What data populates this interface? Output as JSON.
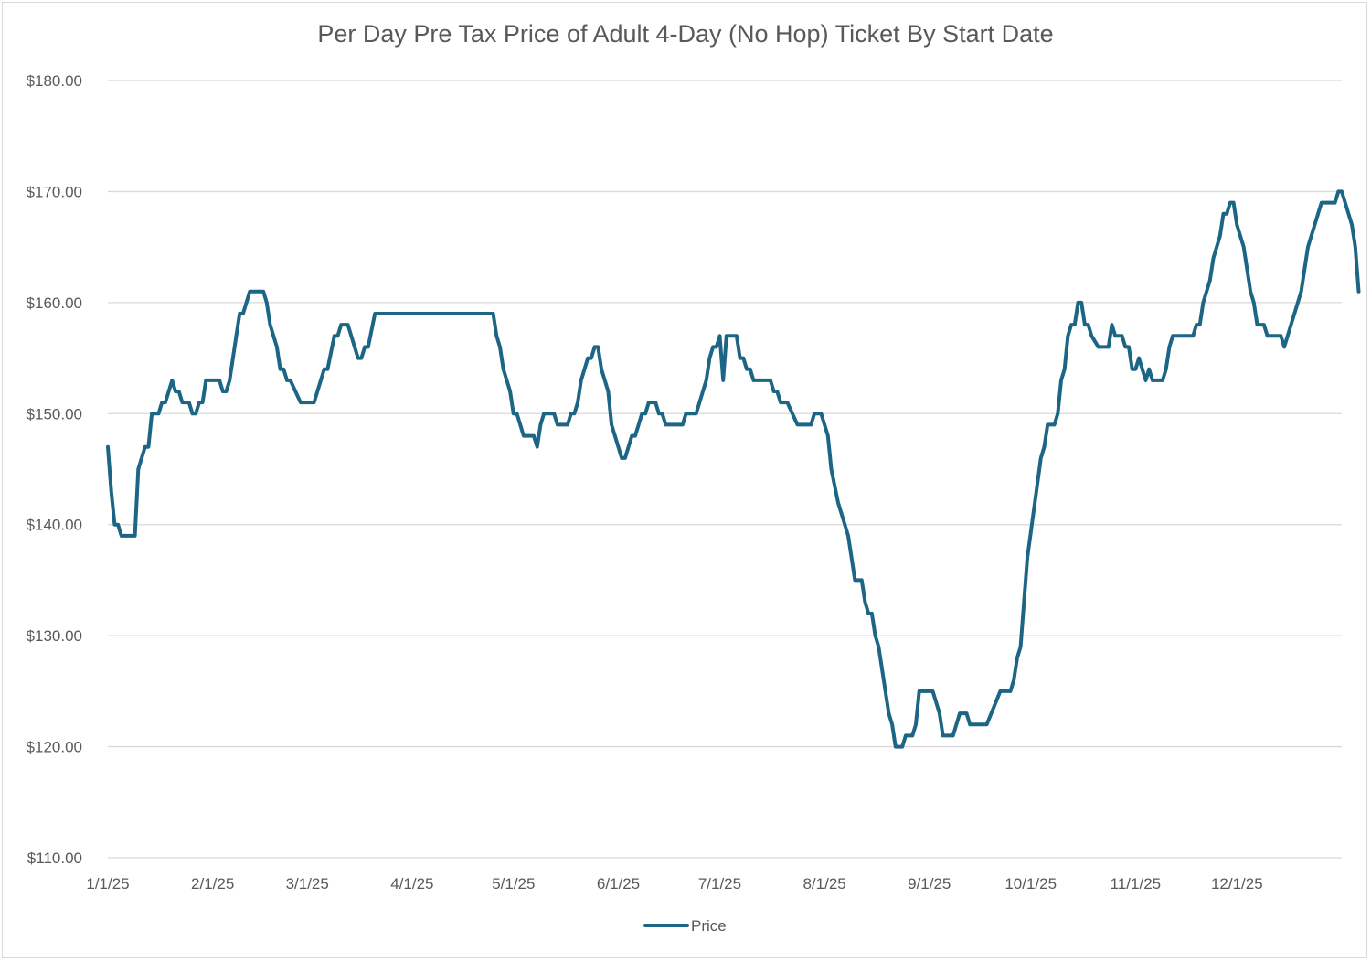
{
  "chart_data": {
    "type": "line",
    "title": "Per Day Pre Tax Price of Adult 4-Day (No Hop) Ticket By Start Date",
    "xlabel": "",
    "ylabel": "",
    "ylim": [
      110,
      180
    ],
    "xlim": [
      "1/1/25",
      "12/31/25"
    ],
    "y_ticks": [
      "$110.00",
      "$120.00",
      "$130.00",
      "$140.00",
      "$150.00",
      "$160.00",
      "$170.00",
      "$180.00"
    ],
    "x_ticks": [
      "1/1/25",
      "2/1/25",
      "3/1/25",
      "4/1/25",
      "5/1/25",
      "6/1/25",
      "7/1/25",
      "8/1/25",
      "9/1/25",
      "10/1/25",
      "11/1/25",
      "12/1/25"
    ],
    "grid": true,
    "legend": "bottom",
    "colors": {
      "line": "#1d6585",
      "grid": "#d9d9d9",
      "text": "#595959"
    },
    "series": [
      {
        "name": "Price",
        "points": [
          [
            "1/1/25",
            147
          ],
          [
            "1/2/25",
            143
          ],
          [
            "1/3/25",
            140
          ],
          [
            "1/4/25",
            140
          ],
          [
            "1/5/25",
            139
          ],
          [
            "1/9/25",
            139
          ],
          [
            "1/10/25",
            145
          ],
          [
            "1/12/25",
            147
          ],
          [
            "1/13/25",
            147
          ],
          [
            "1/14/25",
            150
          ],
          [
            "1/16/25",
            150
          ],
          [
            "1/17/25",
            151
          ],
          [
            "1/18/25",
            151
          ],
          [
            "1/20/25",
            153
          ],
          [
            "1/21/25",
            152
          ],
          [
            "1/22/25",
            152
          ],
          [
            "1/23/25",
            151
          ],
          [
            "1/25/25",
            151
          ],
          [
            "1/26/25",
            150
          ],
          [
            "1/27/25",
            150
          ],
          [
            "1/28/25",
            151
          ],
          [
            "1/29/25",
            151
          ],
          [
            "1/30/25",
            153
          ],
          [
            "2/3/25",
            153
          ],
          [
            "2/4/25",
            152
          ],
          [
            "2/5/25",
            152
          ],
          [
            "2/6/25",
            153
          ],
          [
            "2/8/25",
            157
          ],
          [
            "2/9/25",
            159
          ],
          [
            "2/10/25",
            159
          ],
          [
            "2/12/25",
            161
          ],
          [
            "2/16/25",
            161
          ],
          [
            "2/17/25",
            160
          ],
          [
            "2/18/25",
            158
          ],
          [
            "2/20/25",
            156
          ],
          [
            "2/21/25",
            154
          ],
          [
            "2/22/25",
            154
          ],
          [
            "2/23/25",
            153
          ],
          [
            "2/24/25",
            153
          ],
          [
            "2/27/25",
            151
          ],
          [
            "3/3/25",
            151
          ],
          [
            "3/6/25",
            154
          ],
          [
            "3/7/25",
            154
          ],
          [
            "3/9/25",
            157
          ],
          [
            "3/10/25",
            157
          ],
          [
            "3/11/25",
            158
          ],
          [
            "3/13/25",
            158
          ],
          [
            "3/16/25",
            155
          ],
          [
            "3/17/25",
            155
          ],
          [
            "3/18/25",
            156
          ],
          [
            "3/19/25",
            156
          ],
          [
            "3/21/25",
            159
          ],
          [
            "4/25/25",
            159
          ],
          [
            "4/26/25",
            157
          ],
          [
            "4/27/25",
            156
          ],
          [
            "4/28/25",
            154
          ],
          [
            "4/30/25",
            152
          ],
          [
            "5/1/25",
            150
          ],
          [
            "5/2/25",
            150
          ],
          [
            "5/4/25",
            148
          ],
          [
            "5/7/25",
            148
          ],
          [
            "5/8/25",
            147
          ],
          [
            "5/9/25",
            149
          ],
          [
            "5/10/25",
            150
          ],
          [
            "5/13/25",
            150
          ],
          [
            "5/14/25",
            149
          ],
          [
            "5/17/25",
            149
          ],
          [
            "5/18/25",
            150
          ],
          [
            "5/19/25",
            150
          ],
          [
            "5/20/25",
            151
          ],
          [
            "5/21/25",
            153
          ],
          [
            "5/23/25",
            155
          ],
          [
            "5/24/25",
            155
          ],
          [
            "5/25/25",
            156
          ],
          [
            "5/26/25",
            156
          ],
          [
            "5/27/25",
            154
          ],
          [
            "5/29/25",
            152
          ],
          [
            "5/30/25",
            149
          ],
          [
            "6/2/25",
            146
          ],
          [
            "6/3/25",
            146
          ],
          [
            "6/5/25",
            148
          ],
          [
            "6/6/25",
            148
          ],
          [
            "6/8/25",
            150
          ],
          [
            "6/9/25",
            150
          ],
          [
            "6/10/25",
            151
          ],
          [
            "6/12/25",
            151
          ],
          [
            "6/13/25",
            150
          ],
          [
            "6/14/25",
            150
          ],
          [
            "6/15/25",
            149
          ],
          [
            "6/20/25",
            149
          ],
          [
            "6/21/25",
            150
          ],
          [
            "6/24/25",
            150
          ],
          [
            "6/27/25",
            153
          ],
          [
            "6/28/25",
            155
          ],
          [
            "6/29/25",
            156
          ],
          [
            "6/30/25",
            156
          ],
          [
            "7/1/25",
            157
          ],
          [
            "7/2/25",
            153
          ],
          [
            "7/3/25",
            157
          ],
          [
            "7/6/25",
            157
          ],
          [
            "7/7/25",
            155
          ],
          [
            "7/8/25",
            155
          ],
          [
            "7/9/25",
            154
          ],
          [
            "7/10/25",
            154
          ],
          [
            "7/11/25",
            153
          ],
          [
            "7/16/25",
            153
          ],
          [
            "7/17/25",
            152
          ],
          [
            "7/18/25",
            152
          ],
          [
            "7/19/25",
            151
          ],
          [
            "7/21/25",
            151
          ],
          [
            "7/24/25",
            149
          ],
          [
            "7/28/25",
            149
          ],
          [
            "7/29/25",
            150
          ],
          [
            "7/31/25",
            150
          ],
          [
            "8/2/25",
            148
          ],
          [
            "8/3/25",
            145
          ],
          [
            "8/5/25",
            142
          ],
          [
            "8/7/25",
            140
          ],
          [
            "8/8/25",
            139
          ],
          [
            "8/10/25",
            135
          ],
          [
            "8/12/25",
            135
          ],
          [
            "8/13/25",
            133
          ],
          [
            "8/14/25",
            132
          ],
          [
            "8/15/25",
            132
          ],
          [
            "8/16/25",
            130
          ],
          [
            "8/17/25",
            129
          ],
          [
            "8/20/25",
            123
          ],
          [
            "8/21/25",
            122
          ],
          [
            "8/22/25",
            120
          ],
          [
            "8/24/25",
            120
          ],
          [
            "8/25/25",
            121
          ],
          [
            "8/27/25",
            121
          ],
          [
            "8/28/25",
            122
          ],
          [
            "8/29/25",
            125
          ],
          [
            "9/2/25",
            125
          ],
          [
            "9/4/25",
            123
          ],
          [
            "9/5/25",
            121
          ],
          [
            "9/8/25",
            121
          ],
          [
            "9/10/25",
            123
          ],
          [
            "9/12/25",
            123
          ],
          [
            "9/13/25",
            122
          ],
          [
            "9/18/25",
            122
          ],
          [
            "9/22/25",
            125
          ],
          [
            "9/25/25",
            125
          ],
          [
            "9/26/25",
            126
          ],
          [
            "9/27/25",
            128
          ],
          [
            "9/28/25",
            129
          ],
          [
            "9/29/25",
            133
          ],
          [
            "9/30/25",
            137
          ],
          [
            "10/4/25",
            146
          ],
          [
            "10/5/25",
            147
          ],
          [
            "10/6/25",
            149
          ],
          [
            "10/8/25",
            149
          ],
          [
            "10/9/25",
            150
          ],
          [
            "10/10/25",
            153
          ],
          [
            "10/11/25",
            154
          ],
          [
            "10/12/25",
            157
          ],
          [
            "10/13/25",
            158
          ],
          [
            "10/14/25",
            158
          ],
          [
            "10/15/25",
            160
          ],
          [
            "10/16/25",
            160
          ],
          [
            "10/17/25",
            158
          ],
          [
            "10/18/25",
            158
          ],
          [
            "10/19/25",
            157
          ],
          [
            "10/21/25",
            156
          ],
          [
            "10/24/25",
            156
          ],
          [
            "10/25/25",
            158
          ],
          [
            "10/26/25",
            157
          ],
          [
            "10/28/25",
            157
          ],
          [
            "10/29/25",
            156
          ],
          [
            "10/30/25",
            156
          ],
          [
            "10/31/25",
            154
          ],
          [
            "11/1/25",
            154
          ],
          [
            "11/2/25",
            155
          ],
          [
            "11/4/25",
            153
          ],
          [
            "11/5/25",
            154
          ],
          [
            "11/6/25",
            153
          ],
          [
            "11/9/25",
            153
          ],
          [
            "11/10/25",
            154
          ],
          [
            "11/11/25",
            156
          ],
          [
            "11/12/25",
            157
          ],
          [
            "11/18/25",
            157
          ],
          [
            "11/19/25",
            158
          ],
          [
            "11/20/25",
            158
          ],
          [
            "11/21/25",
            160
          ],
          [
            "11/23/25",
            162
          ],
          [
            "11/24/25",
            164
          ],
          [
            "11/26/25",
            166
          ],
          [
            "11/27/25",
            168
          ],
          [
            "11/28/25",
            168
          ],
          [
            "11/29/25",
            169
          ],
          [
            "11/30/25",
            169
          ],
          [
            "12/1/25",
            167
          ],
          [
            "12/3/25",
            165
          ],
          [
            "12/5/25",
            161
          ],
          [
            "12/6/25",
            160
          ],
          [
            "12/7/25",
            158
          ],
          [
            "12/9/25",
            158
          ],
          [
            "12/10/25",
            157
          ],
          [
            "12/14/25",
            157
          ],
          [
            "12/15/25",
            156
          ],
          [
            "12/17/25",
            158
          ],
          [
            "12/19/25",
            160
          ],
          [
            "12/20/25",
            161
          ],
          [
            "12/22/25",
            165
          ],
          [
            "12/23/25",
            166
          ],
          [
            "12/25/25",
            168
          ],
          [
            "12/26/25",
            169
          ],
          [
            "12/30/25",
            169
          ],
          [
            "12/31/25",
            170
          ]
        ]
      }
    ],
    "tail_points": [
      [
        "1/1/26",
        170
      ],
      [
        "1/2/26",
        169
      ],
      [
        "1/4/26",
        167
      ],
      [
        "1/5/26",
        165
      ],
      [
        "1/6/26",
        161
      ]
    ]
  }
}
